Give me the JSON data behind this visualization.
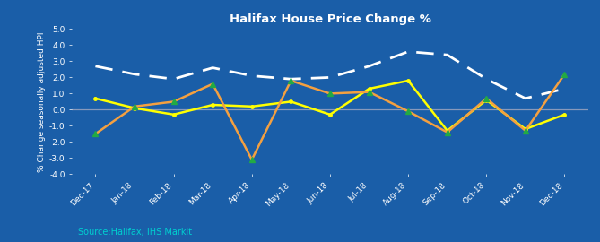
{
  "title": "Halifax House Price Change %",
  "ylabel": "% Change seasonally adjusted HPI",
  "background_color": "#1a5ea8",
  "text_color": "white",
  "source_text": "Source:Halifax, IHS Markit",
  "source_color": "#00d0d0",
  "categories": [
    "Dec-17",
    "Jan-18",
    "Feb-18",
    "Mar-18",
    "Apr-18",
    "May-18",
    "Jun-18",
    "Jul-18",
    "Aug-18",
    "Sep-18",
    "Oct-18",
    "Nov-18",
    "Dec-18"
  ],
  "quarterly_annual": [
    2.7,
    2.2,
    1.9,
    2.6,
    2.1,
    1.9,
    2.0,
    2.7,
    3.6,
    3.4,
    1.9,
    0.7,
    1.3
  ],
  "three_month": [
    0.7,
    0.1,
    -0.3,
    0.3,
    0.2,
    0.5,
    -0.3,
    1.3,
    1.8,
    -1.3,
    0.6,
    -1.2,
    -0.3
  ],
  "monthly": [
    -1.5,
    0.2,
    0.5,
    1.6,
    -3.1,
    1.8,
    1.0,
    1.1,
    -0.1,
    -1.4,
    0.7,
    -1.3,
    2.2
  ],
  "ylim": [
    -4.0,
    5.0
  ],
  "yticks": [
    -4.0,
    -3.0,
    -2.0,
    -1.0,
    0.0,
    1.0,
    2.0,
    3.0,
    4.0,
    5.0
  ],
  "quarterly_color": "white",
  "three_month_color": "#ffff00",
  "monthly_color": "#f4a040",
  "zero_line_color": "#8899bb"
}
